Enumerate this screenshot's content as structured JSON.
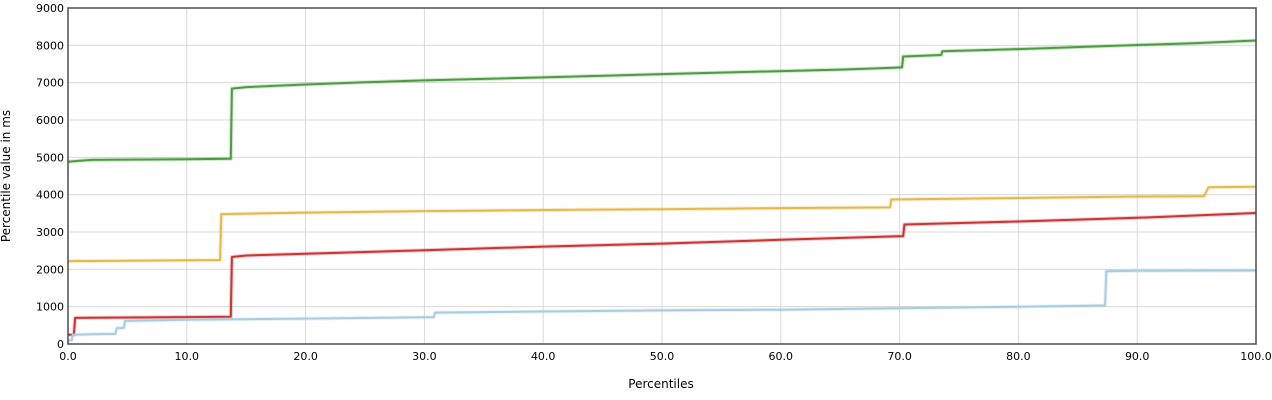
{
  "chart_data": {
    "type": "line",
    "title": "",
    "xlabel": "Percentiles",
    "ylabel": "Percentile value in ms",
    "xlim": [
      0,
      100
    ],
    "ylim": [
      0,
      9000
    ],
    "grid": true,
    "x_ticks": [
      "0.0",
      "10.0",
      "20.0",
      "30.0",
      "40.0",
      "50.0",
      "60.0",
      "70.0",
      "80.0",
      "90.0",
      "100.0"
    ],
    "y_ticks": [
      "0",
      "1000",
      "2000",
      "3000",
      "4000",
      "5000",
      "6000",
      "7000",
      "8000",
      "9000"
    ],
    "series": [
      {
        "color": "#4a9e3f",
        "points": [
          [
            0,
            4880
          ],
          [
            1,
            4910
          ],
          [
            2,
            4930
          ],
          [
            5,
            4940
          ],
          [
            10,
            4950
          ],
          [
            13.7,
            4960
          ],
          [
            13.8,
            6840
          ],
          [
            15,
            6880
          ],
          [
            20,
            6950
          ],
          [
            25,
            7010
          ],
          [
            30,
            7060
          ],
          [
            40,
            7140
          ],
          [
            50,
            7230
          ],
          [
            60,
            7310
          ],
          [
            65,
            7350
          ],
          [
            70.2,
            7410
          ],
          [
            70.3,
            7700
          ],
          [
            73.5,
            7740
          ],
          [
            73.6,
            7840
          ],
          [
            80,
            7900
          ],
          [
            90,
            8010
          ],
          [
            95,
            8060
          ],
          [
            100,
            8130
          ]
        ]
      },
      {
        "color": "#e8b84a",
        "points": [
          [
            0,
            2220
          ],
          [
            5,
            2230
          ],
          [
            12.8,
            2250
          ],
          [
            12.9,
            3480
          ],
          [
            20,
            3520
          ],
          [
            30,
            3560
          ],
          [
            40,
            3590
          ],
          [
            50,
            3610
          ],
          [
            60,
            3640
          ],
          [
            69.2,
            3660
          ],
          [
            69.3,
            3870
          ],
          [
            80,
            3910
          ],
          [
            90,
            3950
          ],
          [
            95.6,
            3960
          ],
          [
            95.8,
            4060
          ],
          [
            96,
            4200
          ],
          [
            100,
            4210
          ]
        ]
      },
      {
        "color": "#cc3333",
        "points": [
          [
            0,
            250
          ],
          [
            0.5,
            250
          ],
          [
            0.6,
            700
          ],
          [
            5,
            710
          ],
          [
            10,
            720
          ],
          [
            13.7,
            730
          ],
          [
            13.8,
            2330
          ],
          [
            15,
            2370
          ],
          [
            20,
            2420
          ],
          [
            30,
            2510
          ],
          [
            40,
            2610
          ],
          [
            50,
            2690
          ],
          [
            60,
            2790
          ],
          [
            70.3,
            2890
          ],
          [
            70.4,
            3200
          ],
          [
            80,
            3280
          ],
          [
            90,
            3380
          ],
          [
            100,
            3510
          ]
        ]
      },
      {
        "color": "#a8cce0",
        "points": [
          [
            0,
            100
          ],
          [
            0.3,
            100
          ],
          [
            0.4,
            250
          ],
          [
            2,
            260
          ],
          [
            4,
            270
          ],
          [
            4.1,
            420
          ],
          [
            4.7,
            430
          ],
          [
            4.8,
            620
          ],
          [
            10,
            650
          ],
          [
            20,
            680
          ],
          [
            30.8,
            720
          ],
          [
            30.9,
            840
          ],
          [
            40,
            870
          ],
          [
            50,
            900
          ],
          [
            60,
            920
          ],
          [
            70,
            960
          ],
          [
            80,
            1000
          ],
          [
            87.3,
            1030
          ],
          [
            87.4,
            1950
          ],
          [
            90,
            1960
          ],
          [
            100,
            1970
          ]
        ]
      }
    ]
  }
}
